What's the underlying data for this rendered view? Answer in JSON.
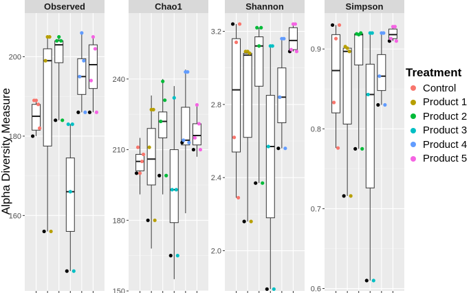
{
  "chart_data": {
    "type": "box",
    "ylabel": "Alpha Diversity Measure",
    "legend": {
      "title": "Treatment",
      "position": "right",
      "entries": [
        {
          "name": "Control",
          "color": "#F8766D"
        },
        {
          "name": "Product 1",
          "color": "#B79F00"
        },
        {
          "name": "Product 2",
          "color": "#00BA38"
        },
        {
          "name": "Product 3",
          "color": "#00BFC4"
        },
        {
          "name": "Product 4",
          "color": "#619CFF"
        },
        {
          "name": "Product 5",
          "color": "#F564E3"
        }
      ]
    },
    "categories": [
      "Control",
      "Product 1",
      "Product 2",
      "Product 3",
      "Product 4",
      "Product 5"
    ],
    "panels": [
      {
        "title": "Observed",
        "ylim": [
          141,
          211
        ],
        "yticks": [
          160,
          180,
          200
        ],
        "ticklabels": [
          "160",
          "180",
          "200"
        ],
        "boxes": [
          {
            "min": 180,
            "q1": 181.5,
            "median": 185,
            "q3": 188,
            "max": 189
          },
          {
            "min": 156,
            "q1": 177.5,
            "median": 199,
            "q3": 202,
            "max": 205
          },
          {
            "min": 184,
            "q1": 198.5,
            "median": 203,
            "q3": 204,
            "max": 205
          },
          {
            "min": 146,
            "q1": 156,
            "median": 166,
            "q3": 174.5,
            "max": 183
          },
          {
            "min": 186,
            "q1": 190.5,
            "median": 195,
            "q3": 199.5,
            "max": 206
          },
          {
            "min": 186,
            "q1": 192,
            "median": 198,
            "q3": 203,
            "max": 205
          }
        ],
        "points": [
          [
            {
              "y": 180
            },
            {
              "y": 182
            },
            {
              "y": 189
            },
            {
              "y": 188
            },
            {
              "y": 189
            }
          ],
          [
            {
              "y": 156
            },
            {
              "y": 156
            },
            {
              "y": 199
            },
            {
              "y": 205
            },
            {
              "y": 205
            }
          ],
          [
            {
              "y": 184
            },
            {
              "y": 184
            },
            {
              "y": 204
            },
            {
              "y": 204
            },
            {
              "y": 205
            }
          ],
          [
            {
              "y": 146
            },
            {
              "y": 146
            },
            {
              "y": 183
            },
            {
              "y": 183
            },
            {
              "y": 166
            }
          ],
          [
            {
              "y": 186
            },
            {
              "y": 186
            },
            {
              "y": 195
            },
            {
              "y": 199
            },
            {
              "y": 206
            }
          ],
          [
            {
              "y": 186
            },
            {
              "y": 186
            },
            {
              "y": 194
            },
            {
              "y": 202
            },
            {
              "y": 205
            }
          ]
        ]
      },
      {
        "title": "Chao1",
        "ylim": [
          150,
          268
        ],
        "yticks": [
          150,
          180,
          210,
          240
        ],
        "ticklabels": [
          "150",
          "180",
          "210",
          "240"
        ],
        "boxes": [
          {
            "min": 191,
            "q1": 201,
            "median": 205,
            "q3": 208,
            "max": 215
          },
          {
            "min": 168,
            "q1": 195,
            "median": 206,
            "q3": 219,
            "max": 233
          },
          {
            "min": 191,
            "q1": 215,
            "median": 222,
            "q3": 226,
            "max": 240
          },
          {
            "min": 155,
            "q1": 179,
            "median": 193,
            "q3": 210,
            "max": 237
          },
          {
            "min": 183,
            "q1": 212,
            "median": 214,
            "q3": 228,
            "max": 244
          },
          {
            "min": 207,
            "q1": 212,
            "median": 216,
            "q3": 221,
            "max": 229
          }
        ],
        "points": [
          [
            {
              "y": 200
            },
            {
              "y": 208
            },
            {
              "y": 211
            },
            {
              "y": 205
            },
            {
              "y": 200
            }
          ],
          [
            {
              "y": 180
            },
            {
              "y": 180
            },
            {
              "y": 211
            },
            {
              "y": 227
            },
            {
              "y": 227
            }
          ],
          [
            {
              "y": 199
            },
            {
              "y": 199
            },
            {
              "y": 222
            },
            {
              "y": 231
            },
            {
              "y": 239
            }
          ],
          [
            {
              "y": 165
            },
            {
              "y": 165
            },
            {
              "y": 193
            },
            {
              "y": 193
            },
            {
              "y": 232
            }
          ],
          [
            {
              "y": 213
            },
            {
              "y": 213
            },
            {
              "y": 214
            },
            {
              "y": 243
            },
            {
              "y": 243
            }
          ],
          [
            {
              "y": 210
            },
            {
              "y": 210
            },
            {
              "y": 215
            },
            {
              "y": 221
            },
            {
              "y": 229
            }
          ]
        ]
      },
      {
        "title": "Shannon",
        "ylim": [
          1.78,
          3.3
        ],
        "yticks": [
          2.0,
          2.4,
          2.8,
          3.2
        ],
        "ticklabels": [
          "2.0",
          "2.4",
          "2.8",
          "3.2"
        ],
        "boxes": [
          {
            "min": 2.29,
            "q1": 2.54,
            "median": 2.88,
            "q3": 3.16,
            "max": 3.24
          },
          {
            "min": 2.16,
            "q1": 2.62,
            "median": 3.07,
            "q3": 3.08,
            "max": 3.09
          },
          {
            "min": 2.37,
            "q1": 2.9,
            "median": 3.12,
            "q3": 3.17,
            "max": 3.22
          },
          {
            "min": 1.79,
            "q1": 2.18,
            "median": 2.57,
            "q3": 2.85,
            "max": 3.12
          },
          {
            "min": 2.56,
            "q1": 2.7,
            "median": 2.84,
            "q3": 3.0,
            "max": 3.16
          },
          {
            "min": 3.09,
            "q1": 3.1,
            "median": 3.15,
            "q3": 3.22,
            "max": 3.24
          }
        ],
        "points": [
          [
            {
              "y": 3.24
            },
            {
              "y": 3.24
            },
            {
              "y": 2.62
            },
            {
              "y": 2.29
            },
            {
              "y": 3.14
            }
          ],
          [
            {
              "y": 2.16
            },
            {
              "y": 2.16
            },
            {
              "y": 3.09
            },
            {
              "y": 3.08
            },
            {
              "y": 3.09
            }
          ],
          [
            {
              "y": 2.37
            },
            {
              "y": 2.37
            },
            {
              "y": 3.22
            },
            {
              "y": 3.22
            },
            {
              "y": 3.12
            }
          ],
          [
            {
              "y": 1.79
            },
            {
              "y": 1.79
            },
            {
              "y": 2.57
            },
            {
              "y": 3.12
            },
            {
              "y": 3.12
            }
          ],
          [
            {
              "y": 2.56
            },
            {
              "y": 2.56
            },
            {
              "y": 2.84
            },
            {
              "y": 3.16
            },
            {
              "y": 3.16
            }
          ],
          [
            {
              "y": 3.09
            },
            {
              "y": 3.09
            },
            {
              "y": 3.1
            },
            {
              "y": 3.24
            },
            {
              "y": 3.24
            }
          ]
        ]
      },
      {
        "title": "Simpson",
        "ylim": [
          0.597,
          0.945
        ],
        "yticks": [
          0.6,
          0.7,
          0.8,
          0.9
        ],
        "ticklabels": [
          "0.6",
          "0.7",
          "0.8",
          "0.9"
        ],
        "boxes": [
          {
            "min": 0.776,
            "q1": 0.82,
            "median": 0.873,
            "q3": 0.918,
            "max": 0.93
          },
          {
            "min": 0.716,
            "q1": 0.806,
            "median": 0.897,
            "q3": 0.901,
            "max": 0.903
          },
          {
            "min": 0.775,
            "q1": 0.88,
            "median": 0.918,
            "q3": 0.919,
            "max": 0.92
          },
          {
            "min": 0.61,
            "q1": 0.726,
            "median": 0.843,
            "q3": 0.881,
            "max": 0.92
          },
          {
            "min": 0.83,
            "q1": 0.848,
            "median": 0.866,
            "q3": 0.893,
            "max": 0.92
          },
          {
            "min": 0.91,
            "q1": 0.913,
            "median": 0.918,
            "q3": 0.925,
            "max": 0.928
          }
        ],
        "points": [
          [
            {
              "y": 0.93
            },
            {
              "y": 0.93
            },
            {
              "y": 0.833
            },
            {
              "y": 0.776
            },
            {
              "y": 0.913
            }
          ],
          [
            {
              "y": 0.716
            },
            {
              "y": 0.716
            },
            {
              "y": 0.903
            },
            {
              "y": 0.897
            },
            {
              "y": 0.901
            }
          ],
          [
            {
              "y": 0.775
            },
            {
              "y": 0.775
            },
            {
              "y": 0.919
            },
            {
              "y": 0.92
            },
            {
              "y": 0.918
            }
          ],
          [
            {
              "y": 0.61
            },
            {
              "y": 0.61
            },
            {
              "y": 0.843
            },
            {
              "y": 0.92
            },
            {
              "y": 0.92
            }
          ],
          [
            {
              "y": 0.83
            },
            {
              "y": 0.83
            },
            {
              "y": 0.866
            },
            {
              "y": 0.92
            },
            {
              "y": 0.92
            }
          ],
          [
            {
              "y": 0.91
            },
            {
              "y": 0.91
            },
            {
              "y": 0.913
            },
            {
              "y": 0.928
            },
            {
              "y": 0.928
            }
          ]
        ]
      }
    ]
  }
}
